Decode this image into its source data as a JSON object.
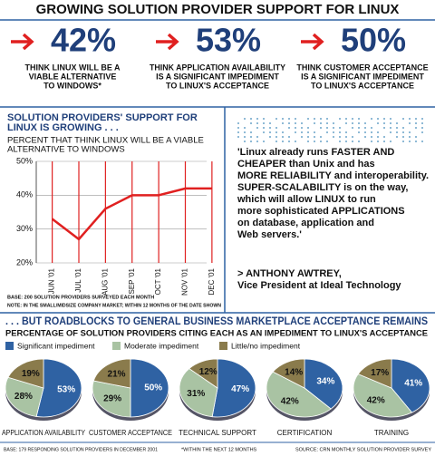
{
  "title": "GROWING SOLUTION PROVIDER SUPPORT FOR LINUX",
  "stats": [
    {
      "value": "42%",
      "text": [
        "THINK LINUX WILL BE A",
        "VIABLE ALTERNATIVE",
        "TO WINDOWS*"
      ]
    },
    {
      "value": "53%",
      "text": [
        "THINK APPLICATION AVAILABILITY",
        "IS A SIGNIFICANT IMPEDIMENT",
        "TO LINUX'S ACCEPTANCE"
      ]
    },
    {
      "value": "50%",
      "text": [
        "THINK CUSTOMER ACCEPTANCE",
        "IS A SIGNIFICANT IMPEDIMENT",
        "TO LINUX'S ACCEPTANCE"
      ]
    }
  ],
  "quote": [
    "'Linux already runs FASTER AND",
    "CHEAPER than Unix and has",
    "MORE RELIABILITY and interoperability.",
    "SUPER-SCALABILITY is on the way,",
    "which will allow LINUX to run",
    "more sophisticated APPLICATIONS",
    "on database, application and",
    "Web servers.'"
  ],
  "attribution": [
    "> ANTHONY AWTREY,",
    "Vice President at Ideal Technology"
  ],
  "chart_data": [
    {
      "type": "line",
      "title": [
        "SOLUTION PROVIDERS' SUPPORT FOR",
        "LINUX IS GROWING . . ."
      ],
      "subtitle": [
        "PERCENT THAT THINK LINUX WILL BE A VIABLE",
        "ALTERNATIVE TO WINDOWS"
      ],
      "categories": [
        "JUN '01",
        "JUL '01",
        "AUG '01",
        "SEP '01",
        "OCT '01",
        "NOV '01",
        "DEC '01"
      ],
      "values": [
        33,
        27,
        36,
        40,
        40,
        42,
        42
      ],
      "color": "#e02020",
      "ylim": [
        20,
        50
      ],
      "yticks": [
        {
          "value": 20,
          "label": "20%"
        },
        {
          "value": 30,
          "label": "30%"
        },
        {
          "value": 40,
          "label": "40%"
        },
        {
          "value": 50,
          "label": "50%"
        }
      ],
      "notes": [
        "BASE: 200 SOLUTION PROVIDERS SURVEYED EACH MONTH",
        "NOTE: IN THE SMALL/MIDSIZE COMPANY MARKET; WITHIN 12 MONTHS OF THE DATE SHOWN"
      ]
    },
    {
      "type": "pie",
      "title": ". . . BUT ROADBLOCKS TO GENERAL BUSINESS MARKETPLACE ACCEPTANCE REMAINS",
      "subtitle": "PERCENTAGE OF SOLUTION PROVIDERS CITING EACH AS AN IMPEDIMENT TO LINUX'S ACCEPTANCE",
      "categories": [
        "Significant impediment",
        "Moderate impediment",
        "Little/no impediment"
      ],
      "colors": [
        "#2f62a3",
        "#a9c3a3",
        "#8a7b4c"
      ],
      "pies": [
        {
          "name": "APPLICATION AVAILABILITY",
          "values": [
            53,
            28,
            19
          ],
          "value_labels": [
            "53%",
            "28%",
            "19%"
          ]
        },
        {
          "name": "CUSTOMER ACCEPTANCE",
          "values": [
            50,
            29,
            21
          ],
          "value_labels": [
            "50%",
            "29%",
            "21%"
          ]
        },
        {
          "name": "TECHNICAL SUPPORT",
          "values": [
            47,
            31,
            12
          ],
          "value_labels": [
            "47%",
            "31%",
            "12%"
          ]
        },
        {
          "name": "CERTIFICATION",
          "values": [
            34,
            42,
            14
          ],
          "value_labels": [
            "34%",
            "42%",
            "14%"
          ]
        },
        {
          "name": "TRAINING",
          "values": [
            41,
            42,
            17
          ],
          "value_labels": [
            "41%",
            "42%",
            "17%"
          ]
        }
      ]
    }
  ],
  "footer": [
    "BASE: 179 RESPONDING SOLUTION PROVIDERS IN DECEMBER 2001",
    "*WITHIN THE NEXT 12 MONTHS",
    "SOURCE: CRN MONTHLY SOLUTION PROVIDER SURVEY"
  ]
}
